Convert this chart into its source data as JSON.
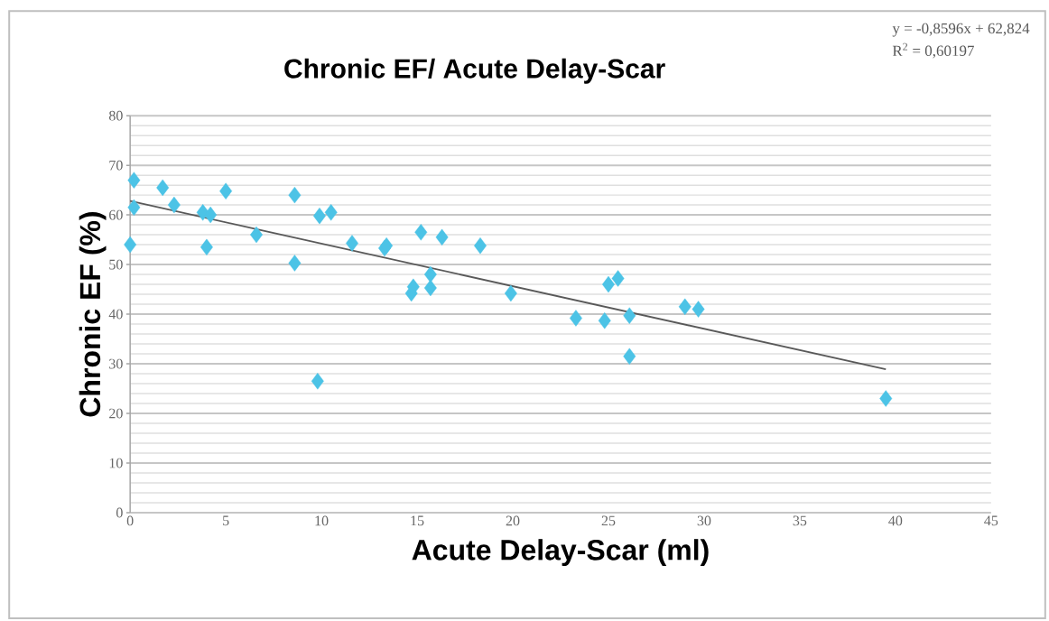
{
  "chart_data": {
    "type": "scatter",
    "title": "Chronic EF/ Acute Delay-Scar",
    "xlabel": "Acute Delay-Scar  (ml)",
    "ylabel": "Chronic EF  (%)",
    "annotations": [
      "y = -0,8596x + 62,824",
      "R$^{2}$ = 0,60197"
    ],
    "xlim": [
      0,
      45
    ],
    "xticks": [
      0,
      5,
      10,
      15,
      20,
      25,
      30,
      35,
      40,
      45
    ],
    "ylim": [
      0,
      80
    ],
    "yticks": [
      0,
      10,
      20,
      30,
      40,
      50,
      60,
      70,
      80
    ],
    "grid": "y",
    "series": [
      {
        "color": "#4cc3e6",
        "marker": "diamond",
        "x": [
          0.2,
          0.2,
          0,
          1.7,
          2.3,
          3.8,
          4.2,
          4,
          5,
          6.6,
          8.6,
          8.6,
          9.8,
          9.9,
          10.5,
          11.6,
          13.3,
          13.4,
          14.7,
          14.8,
          15.2,
          15.7,
          15.7,
          16.3,
          18.3,
          19.9,
          23.3,
          24.8,
          25,
          25.5,
          26.1,
          26.1,
          29,
          29.7,
          39.5
        ],
        "values": [
          67,
          61.5,
          54,
          65.5,
          62,
          60.5,
          60,
          53.5,
          64.8,
          56,
          64,
          50.3,
          26.5,
          59.8,
          60.5,
          54.3,
          53.3,
          53.8,
          44.2,
          45.5,
          56.5,
          45.3,
          48,
          55.5,
          53.8,
          44.2,
          39.2,
          38.7,
          46,
          47.2,
          39.7,
          31.5,
          41.5,
          41,
          23
        ]
      },
      {
        "type": "line",
        "color": "#595959",
        "marker": "none",
        "line_style": "solid",
        "x": [
          0,
          39.5
        ],
        "values": [
          62.8,
          28.9
        ]
      }
    ]
  }
}
